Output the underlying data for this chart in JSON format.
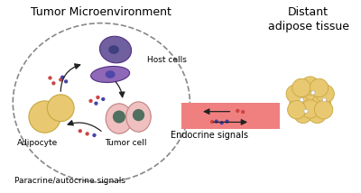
{
  "title_tme": "Tumor Microenvironment",
  "title_dat": "Distant\nadipose tissue",
  "label_host": "Host cells",
  "label_adipocyte": "Adipocyte",
  "label_tumor": "Tumor cell",
  "label_paracrine": "Paracrine/autocrine signals",
  "label_endocrine": "Endocrine signals",
  "bg_color": "#ffffff",
  "tme_ellipse_color": "#888888",
  "signal_band_color": "#f08080",
  "adipocyte_color": "#e8c870",
  "adipocyte_outline": "#c8a840",
  "tumor_cell_fill": "#f0c0c0",
  "tumor_cell_outline": "#c08080",
  "host_cell_fill": "#7060a0",
  "host_cell_outline": "#503080",
  "host_cell2_fill": "#9060b0",
  "nucleus_color": "#404080",
  "small_dot_red": "#cc4444",
  "small_dot_blue": "#4444aa",
  "arrow_color": "#222222"
}
